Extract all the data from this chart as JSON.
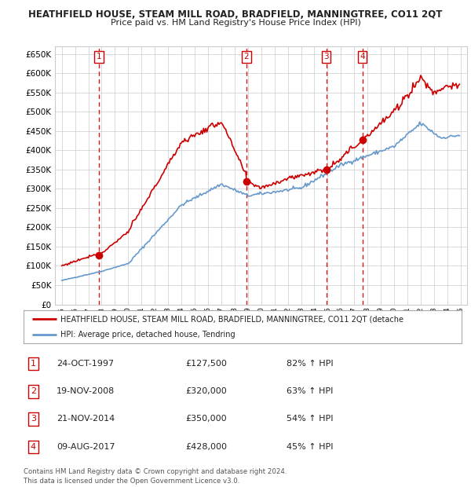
{
  "title1": "HEATHFIELD HOUSE, STEAM MILL ROAD, BRADFIELD, MANNINGTREE, CO11 2QT",
  "title2": "Price paid vs. HM Land Registry's House Price Index (HPI)",
  "legend_label1": "HEATHFIELD HOUSE, STEAM MILL ROAD, BRADFIELD, MANNINGTREE, CO11 2QT (detache",
  "legend_label2": "HPI: Average price, detached house, Tendring",
  "footer1": "Contains HM Land Registry data © Crown copyright and database right 2024.",
  "footer2": "This data is licensed under the Open Government Licence v3.0.",
  "sales": [
    {
      "num": 1,
      "date": "24-OCT-1997",
      "price": 127500,
      "pct": "82%",
      "x_year": 1997.81
    },
    {
      "num": 2,
      "date": "19-NOV-2008",
      "price": 320000,
      "pct": "63%",
      "x_year": 2008.88
    },
    {
      "num": 3,
      "date": "21-NOV-2014",
      "price": 350000,
      "pct": "54%",
      "x_year": 2014.89
    },
    {
      "num": 4,
      "date": "09-AUG-2017",
      "price": 428000,
      "pct": "45%",
      "x_year": 2017.61
    }
  ],
  "ylim": [
    0,
    670000
  ],
  "yticks": [
    0,
    50000,
    100000,
    150000,
    200000,
    250000,
    300000,
    350000,
    400000,
    450000,
    500000,
    550000,
    600000,
    650000
  ],
  "xlim_start": 1994.5,
  "xlim_end": 2025.5,
  "red_color": "#cc0000",
  "blue_color": "#6699cc",
  "grid_color": "#cccccc",
  "background_color": "#ffffff"
}
